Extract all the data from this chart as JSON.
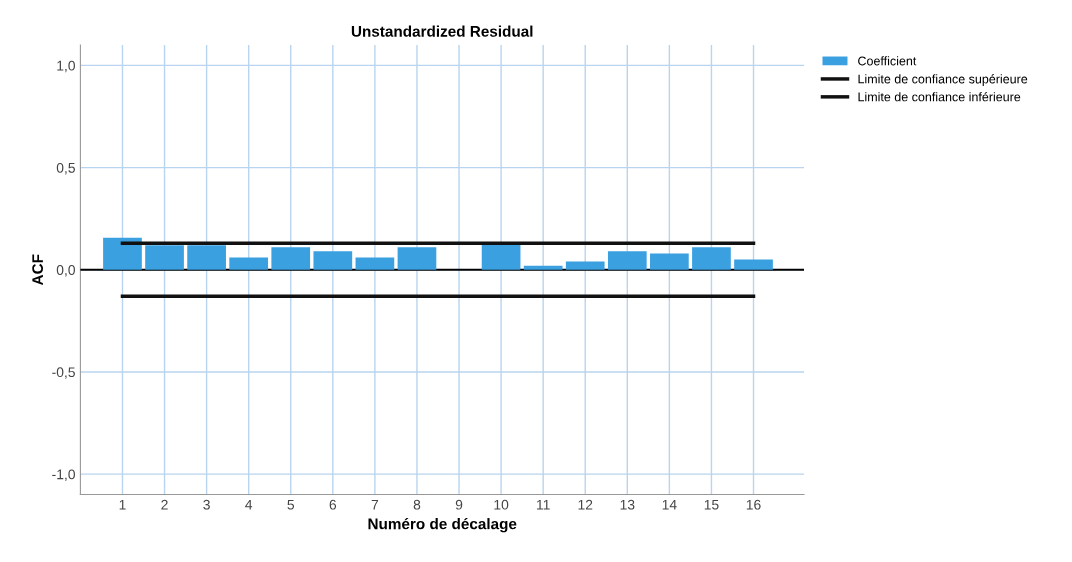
{
  "chart_data": {
    "type": "bar",
    "title": "Unstandardized Residual",
    "xlabel": "Numéro de décalage",
    "ylabel": "ACF",
    "categories": [
      "1",
      "2",
      "3",
      "4",
      "5",
      "6",
      "7",
      "8",
      "9",
      "10",
      "11",
      "12",
      "13",
      "14",
      "15",
      "16"
    ],
    "series": [
      {
        "name": "Coefficient",
        "color": "#3aa0e0",
        "values": [
          0.157,
          0.12,
          0.12,
          0.06,
          0.11,
          0.09,
          0.06,
          0.11,
          null,
          0.13,
          0.02,
          0.04,
          0.09,
          0.08,
          0.11,
          0.05
        ]
      },
      {
        "name": "Limite de confiance supérieure",
        "color": "#111111",
        "type": "line",
        "values": [
          0.13,
          0.13,
          0.13,
          0.13,
          0.13,
          0.13,
          0.13,
          0.13,
          0.13,
          0.13,
          0.13,
          0.13,
          0.13,
          0.13,
          0.13,
          0.13
        ]
      },
      {
        "name": "Limite de confiance inférieure",
        "color": "#111111",
        "type": "line",
        "values": [
          -0.13,
          -0.13,
          -0.13,
          -0.13,
          -0.13,
          -0.13,
          -0.13,
          -0.13,
          -0.13,
          -0.13,
          -0.13,
          -0.13,
          -0.13,
          -0.13,
          -0.13,
          -0.13
        ]
      }
    ],
    "ylim": [
      -1.1,
      1.1
    ],
    "yticks": [
      {
        "value": -1.0,
        "label": "-1,0"
      },
      {
        "value": -0.5,
        "label": "-0,5"
      },
      {
        "value": 0.0,
        "label": "0,0"
      },
      {
        "value": 0.5,
        "label": "0,5"
      },
      {
        "value": 1.0,
        "label": "1,0"
      }
    ],
    "ref_lines": [
      {
        "axis": "y",
        "value": 0.0,
        "color": "#000000"
      }
    ],
    "grid": true,
    "legend": "top right"
  }
}
